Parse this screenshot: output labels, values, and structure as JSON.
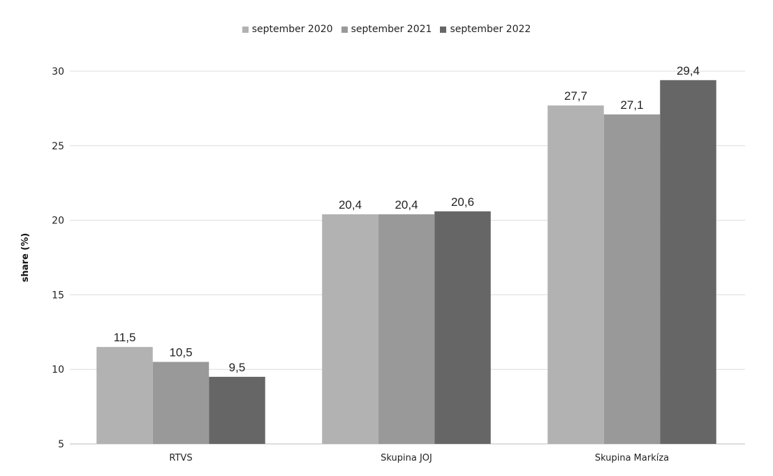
{
  "chart_data": {
    "type": "bar",
    "title": "",
    "xlabel": "",
    "ylabel": "share (%)",
    "ylim": [
      5,
      30
    ],
    "yticks": [
      5,
      10,
      15,
      20,
      25,
      30
    ],
    "grid": true,
    "legend_position": "top",
    "categories": [
      "RTVS",
      "Skupina JOJ",
      "Skupina Markíza"
    ],
    "series": [
      {
        "name": "september 2020",
        "color": "#b2b2b2",
        "values": [
          11.5,
          20.4,
          27.7
        ],
        "labels": [
          "11,5",
          "20,4",
          "27,7"
        ]
      },
      {
        "name": "september 2021",
        "color": "#999999",
        "values": [
          10.5,
          20.4,
          27.1
        ],
        "labels": [
          "10,5",
          "20,4",
          "27,1"
        ]
      },
      {
        "name": "september 2022",
        "color": "#666666",
        "values": [
          9.5,
          20.6,
          29.4
        ],
        "labels": [
          "9,5",
          "20,6",
          "29,4"
        ]
      }
    ]
  }
}
